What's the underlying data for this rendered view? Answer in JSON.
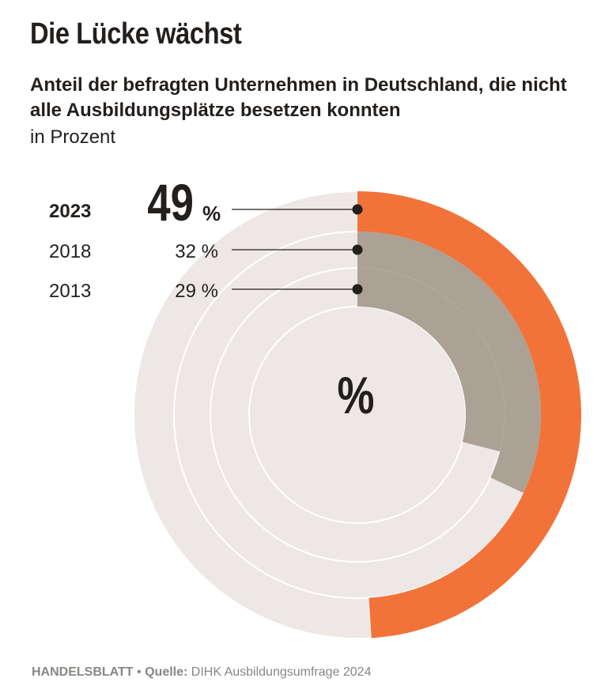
{
  "header": {
    "title": "Die Lücke wächst",
    "subtitle": "Anteil der befragten Unternehmen in Deutschland, die nicht alle Ausbildungsplätze besetzen konnten",
    "unit": "in Prozent"
  },
  "center_label": "%",
  "footer": {
    "brand": "HANDELSBLATT",
    "separator": "•",
    "source_label": "Quelle:",
    "source_text": "DIHK Ausbildungsumfrage 2024"
  },
  "colors": {
    "highlight": "#f2733a",
    "previous": "#aba195",
    "track": "#ede8e5",
    "ring_border": "#ffffff",
    "text": "#231f1c",
    "footer": "#8a8682"
  },
  "chart_data": {
    "type": "radial-bar",
    "unit": "%",
    "max": 100,
    "series": [
      {
        "year": "2023",
        "value": 49,
        "label": "49 %",
        "highlight": true
      },
      {
        "year": "2018",
        "value": 32,
        "label": "32 %",
        "highlight": false
      },
      {
        "year": "2013",
        "value": 29,
        "label": "29 %",
        "highlight": false
      }
    ]
  }
}
